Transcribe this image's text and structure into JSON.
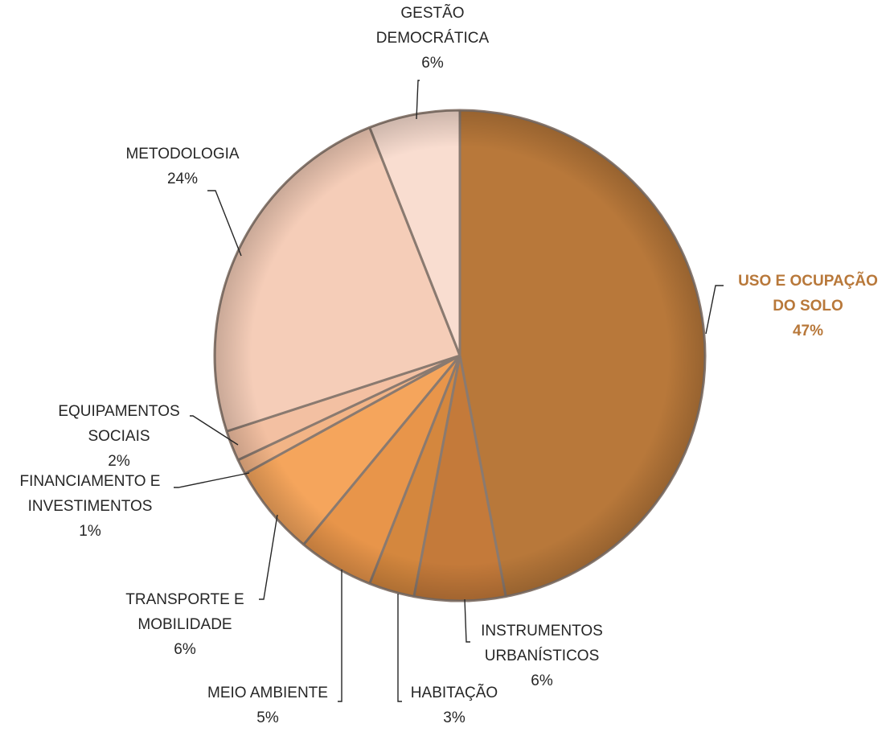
{
  "chart_data": {
    "type": "pie",
    "title": "",
    "start_angle_deg": 0,
    "direction": "clockwise",
    "slices": [
      {
        "label_lines": [
          "USO E OCUPAÇÃO",
          "DO SOLO"
        ],
        "pct_label": "47%",
        "value": 47,
        "color": "#b8783a",
        "highlight": true
      },
      {
        "label_lines": [
          "INSTRUMENTOS",
          "URBANÍSTICOS"
        ],
        "pct_label": "6%",
        "value": 6,
        "color": "#c47a3a",
        "highlight": false
      },
      {
        "label_lines": [
          "HABITAÇÃO"
        ],
        "pct_label": "3%",
        "value": 3,
        "color": "#d4873e",
        "highlight": false
      },
      {
        "label_lines": [
          "MEIO AMBIENTE"
        ],
        "pct_label": "5%",
        "value": 5,
        "color": "#e8954a",
        "highlight": false
      },
      {
        "label_lines": [
          "TRANSPORTE E",
          "MOBILIDADE"
        ],
        "pct_label": "6%",
        "value": 6,
        "color": "#f5a55c",
        "highlight": false
      },
      {
        "label_lines": [
          "FINANCIAMENTO E",
          "INVESTIMENTOS"
        ],
        "pct_label": "1%",
        "value": 1,
        "color": "#f2b486",
        "highlight": false
      },
      {
        "label_lines": [
          "EQUIPAMENTOS",
          "SOCIAIS"
        ],
        "pct_label": "2%",
        "value": 2,
        "color": "#f3c0a2",
        "highlight": false
      },
      {
        "label_lines": [
          "METODOLOGIA"
        ],
        "pct_label": "24%",
        "value": 24,
        "color": "#f5cdb8",
        "highlight": false
      },
      {
        "label_lines": [
          "GESTÃO",
          "DEMOCRÁTICA"
        ],
        "pct_label": "6%",
        "value": 6,
        "color": "#f9ddd0",
        "highlight": false
      }
    ],
    "highlight_label_color": "#b8783a",
    "legend": "none"
  }
}
